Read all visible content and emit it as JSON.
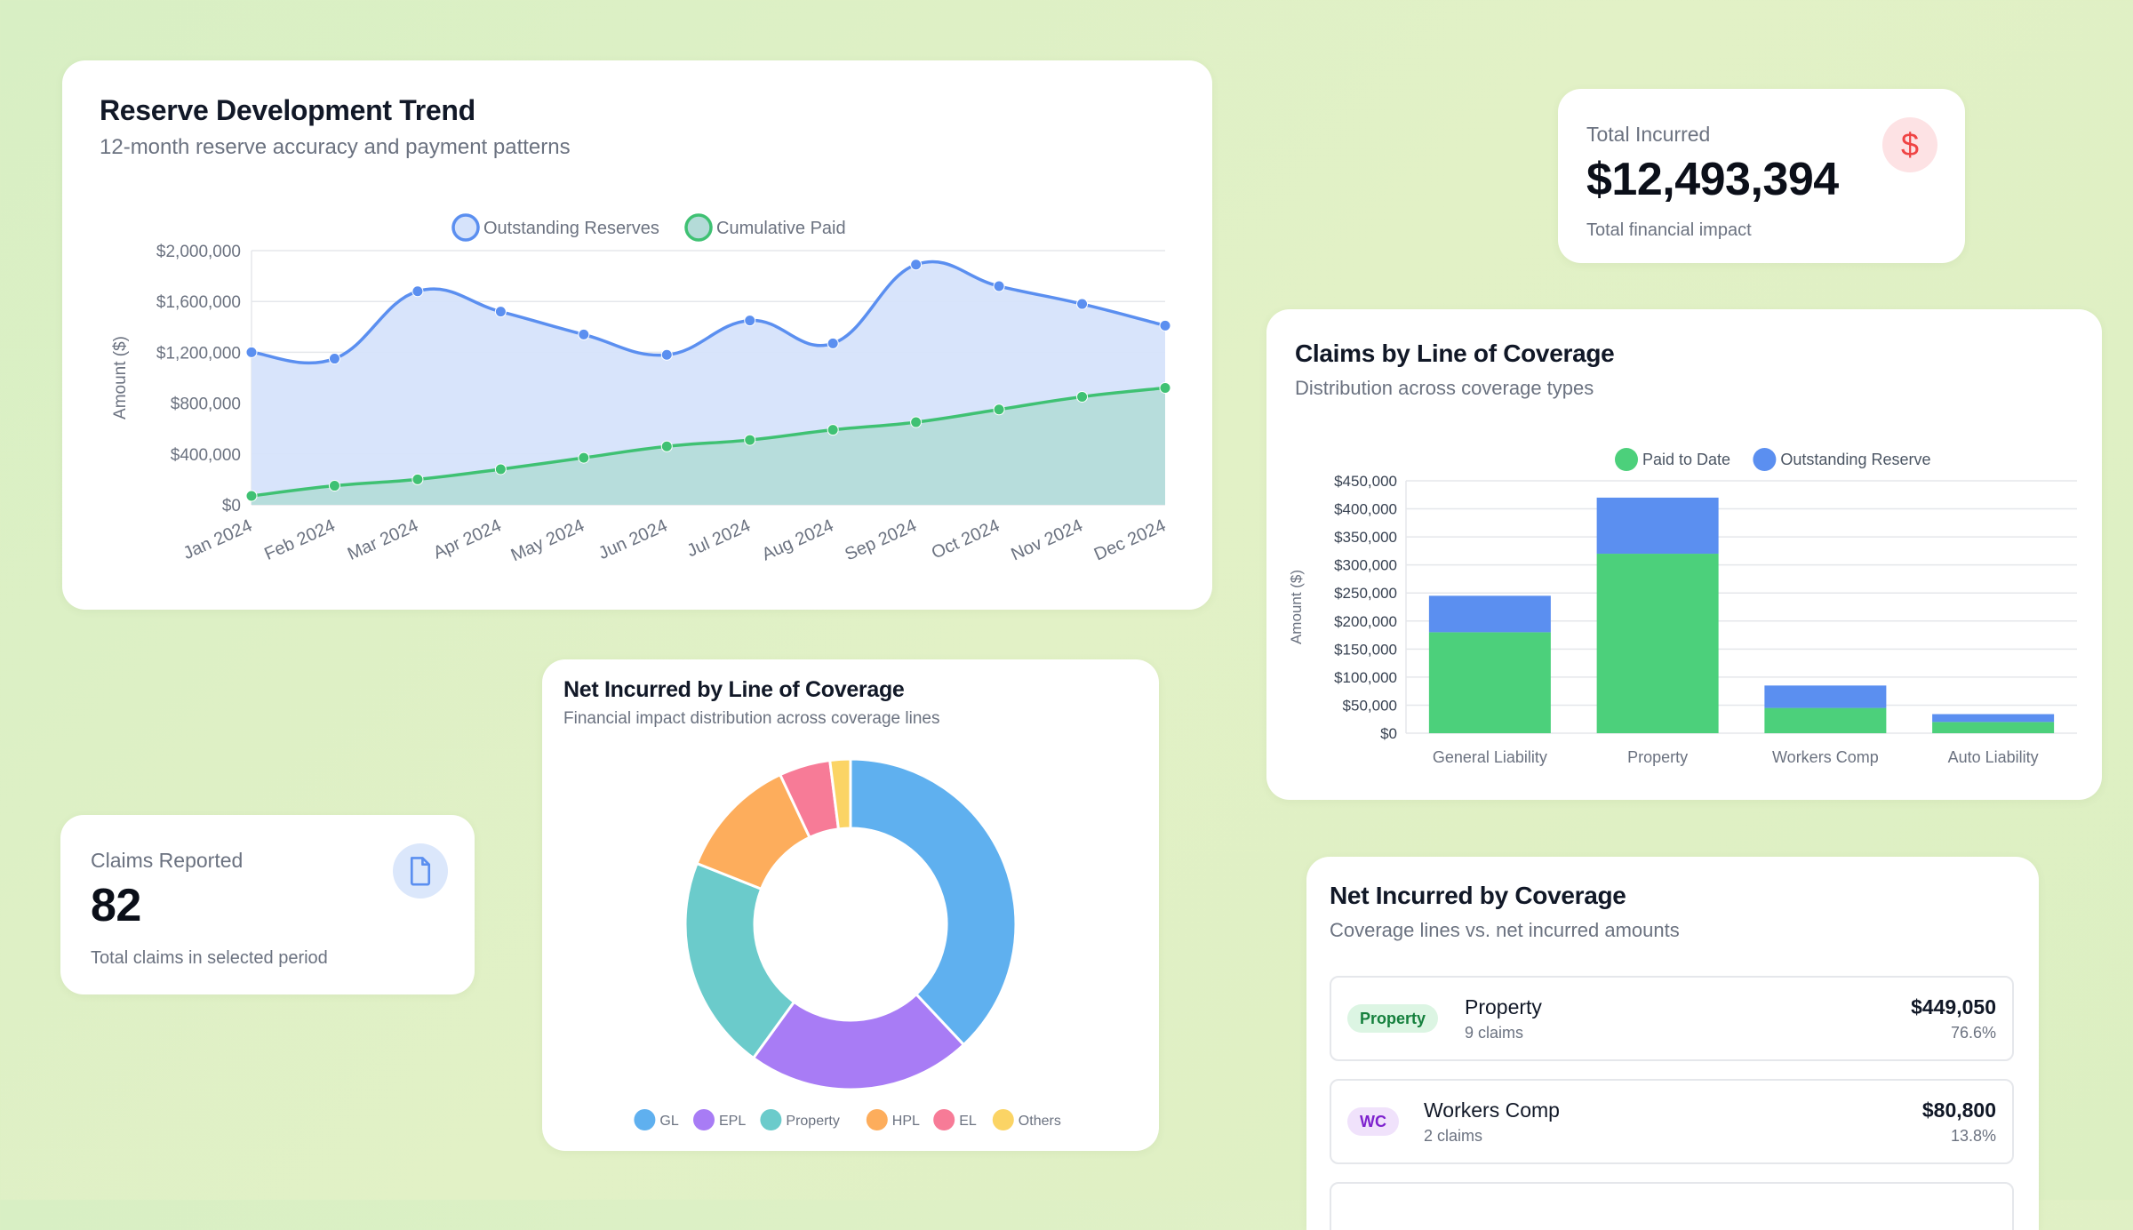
{
  "reserve_trend": {
    "title": "Reserve Development Trend",
    "subtitle": "12-month reserve accuracy and payment patterns",
    "chart_data": {
      "type": "area",
      "title": "Reserve Development Trend",
      "ylabel": "Amount ($)",
      "ylim": [
        0,
        2000000
      ],
      "yticks": [
        "$0",
        "$400,000",
        "$800,000",
        "$1,200,000",
        "$1,600,000",
        "$2,000,000"
      ],
      "categories": [
        "Jan 2024",
        "Feb 2024",
        "Mar 2024",
        "Apr 2024",
        "May 2024",
        "Jun 2024",
        "Jul 2024",
        "Aug 2024",
        "Sep 2024",
        "Oct 2024",
        "Nov 2024",
        "Dec 2024"
      ],
      "series": [
        {
          "name": "Outstanding Reserves",
          "color": "#5b8ff0",
          "fill": "#d6e3fb",
          "values": [
            1200000,
            1150000,
            1680000,
            1520000,
            1340000,
            1180000,
            1450000,
            1270000,
            1890000,
            1720000,
            1580000,
            1410000
          ]
        },
        {
          "name": "Cumulative Paid",
          "color": "#3fc173",
          "fill": "#b4dbd8",
          "values": [
            70000,
            150000,
            200000,
            280000,
            370000,
            460000,
            510000,
            590000,
            650000,
            750000,
            850000,
            920000
          ]
        }
      ]
    }
  },
  "total_incurred": {
    "label": "Total Incurred",
    "value": "$12,493,394",
    "desc": "Total financial impact",
    "icon": "dollar-icon",
    "icon_color": "#ef4444",
    "icon_bg": "#fde2e4"
  },
  "claims_reported": {
    "label": "Claims Reported",
    "value": "82",
    "desc": "Total claims in selected period",
    "icon": "document-icon",
    "icon_color": "#5b8ff0",
    "icon_bg": "#dbe7fb"
  },
  "claims_by_line": {
    "title": "Claims by Line of Coverage",
    "subtitle": "Distribution across coverage types",
    "chart_data": {
      "type": "bar",
      "stacked": true,
      "ylabel": "Amount ($)",
      "ylim": [
        0,
        450000
      ],
      "yticks": [
        "$0",
        "$50,000",
        "$100,000",
        "$150,000",
        "$200,000",
        "$250,000",
        "$300,000",
        "$350,000",
        "$400,000",
        "$450,000"
      ],
      "categories": [
        "General Liability",
        "Property",
        "Workers Comp",
        "Auto Liability"
      ],
      "series": [
        {
          "name": "Paid to Date",
          "color": "#4cd07b",
          "values": [
            180000,
            320000,
            45000,
            20000
          ]
        },
        {
          "name": "Outstanding Reserve",
          "color": "#5b8ff0",
          "values": [
            65000,
            100000,
            40000,
            14000
          ]
        }
      ]
    }
  },
  "net_incurred_donut": {
    "title": "Net Incurred by Line of Coverage",
    "subtitle": "Financial impact distribution across coverage lines",
    "chart_data": {
      "type": "pie",
      "donut": true,
      "categories": [
        "GL",
        "EPL",
        "Property",
        "HPL",
        "EL",
        "Others"
      ],
      "values": [
        38,
        22,
        21,
        12,
        5,
        2
      ],
      "colors": [
        "#5fb0ef",
        "#a87cf5",
        "#6bcbcb",
        "#fdad5c",
        "#f77b97",
        "#fbd465"
      ]
    }
  },
  "net_by_coverage": {
    "title": "Net Incurred by Coverage",
    "subtitle": "Coverage lines vs. net incurred amounts",
    "rows": [
      {
        "badge": "Property",
        "badge_color": "#15803d",
        "badge_bg": "#dcf5e3",
        "name": "Property",
        "count": "9 claims",
        "amount": "$449,050",
        "pct": "76.6%"
      },
      {
        "badge": "WC",
        "badge_color": "#7e22ce",
        "badge_bg": "#f0e2fb",
        "name": "Workers Comp",
        "count": "2 claims",
        "amount": "$80,800",
        "pct": "13.8%"
      }
    ]
  }
}
